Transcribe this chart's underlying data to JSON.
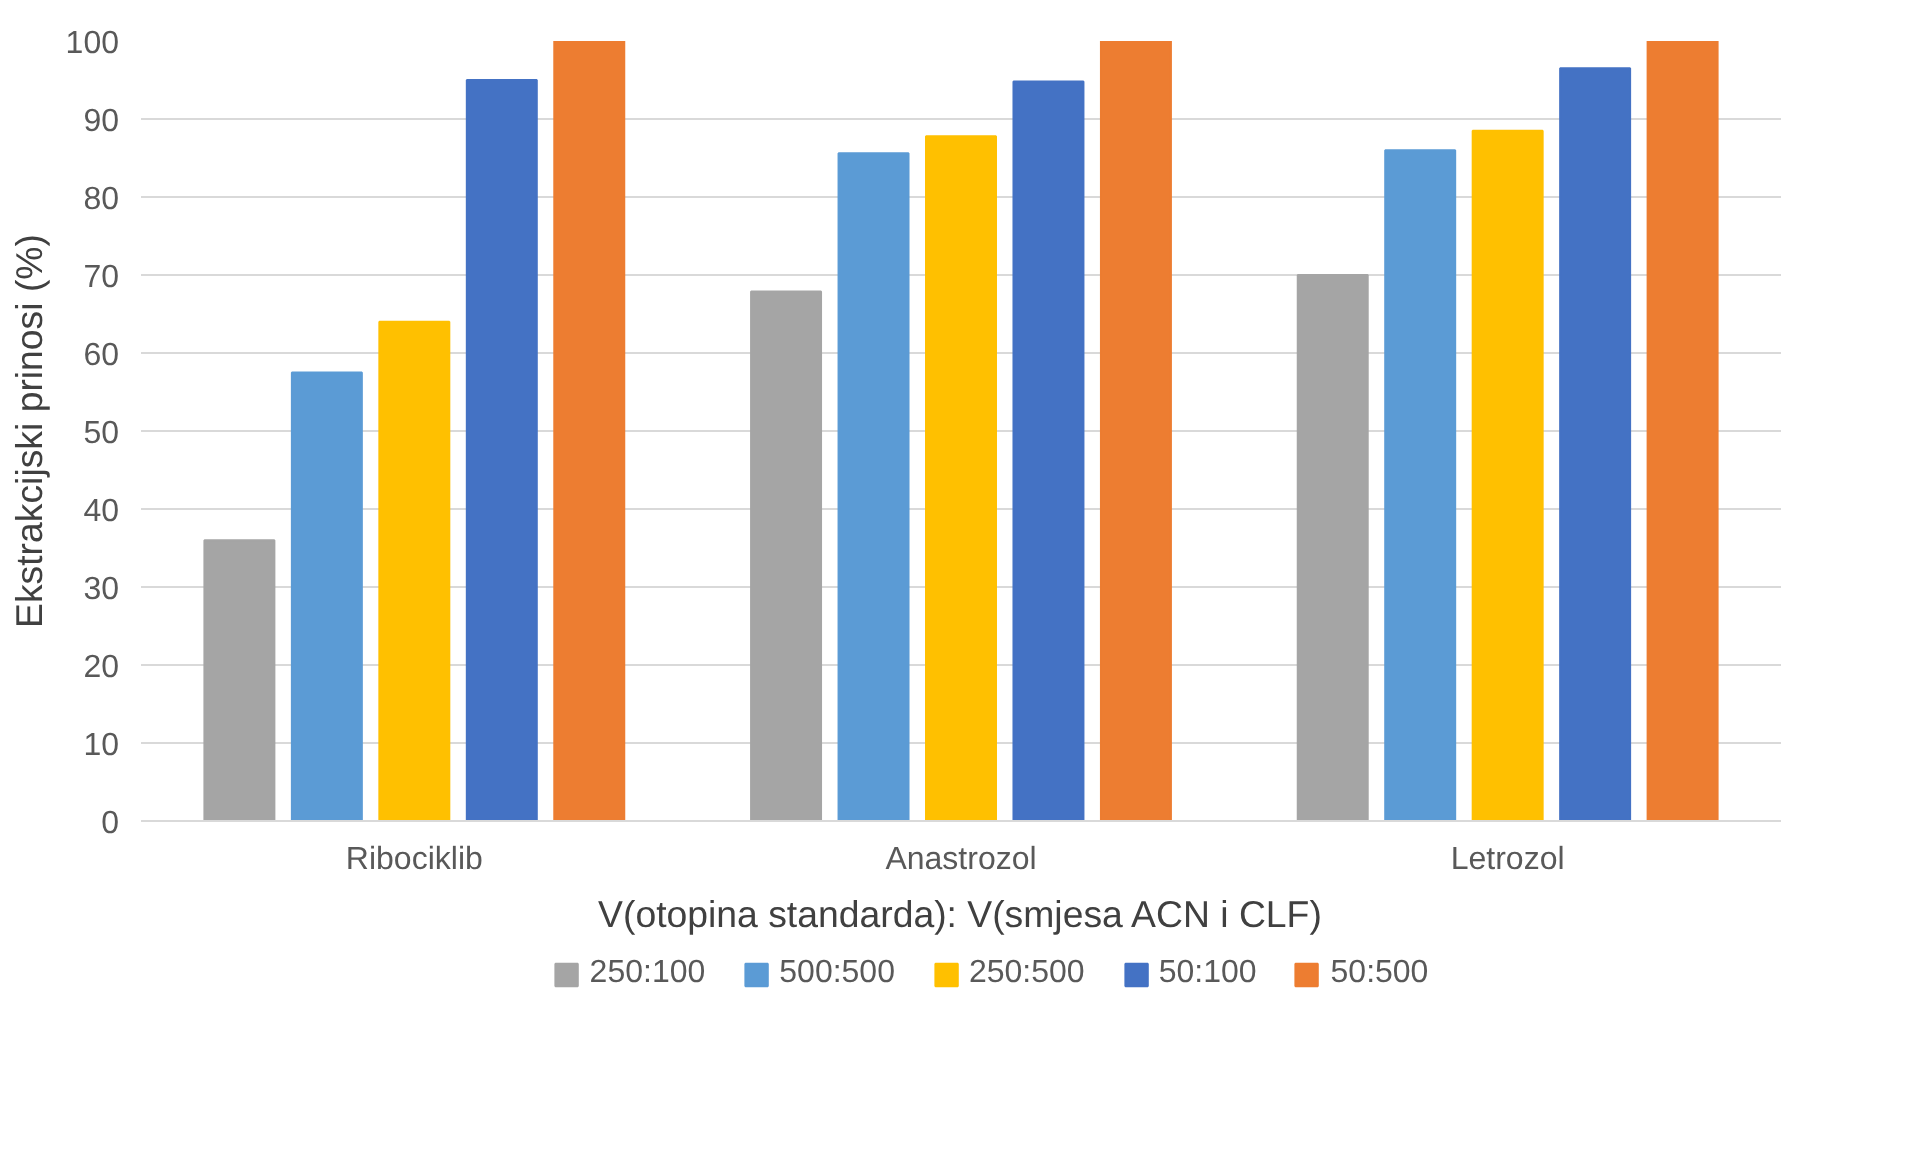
{
  "chart_data": {
    "type": "bar",
    "xlabel": "V(otopina standarda): V(smjesa ACN i CLF)",
    "ylabel": "Ekstrakcijski prinosi (%)",
    "categories": [
      "Ribociklib",
      "Anastrozol",
      "Letrozol"
    ],
    "series": [
      {
        "name": "250:100",
        "color": "#a5a5a5",
        "values": [
          36,
          67.9,
          70
        ]
      },
      {
        "name": "500:500",
        "color": "#5b9bd5",
        "values": [
          57.5,
          85.6,
          86
        ]
      },
      {
        "name": "250:500",
        "color": "#ffc000",
        "values": [
          64,
          87.8,
          88.5
        ]
      },
      {
        "name": "50:100",
        "color": "#4472c4",
        "values": [
          95,
          94.8,
          96.5
        ]
      },
      {
        "name": "50:500",
        "color": "#ed7d31",
        "values": [
          100,
          100,
          100
        ]
      }
    ],
    "ylim": [
      0,
      100
    ],
    "yticks": [
      0,
      10,
      20,
      30,
      40,
      50,
      60,
      70,
      80,
      90,
      100
    ],
    "grid": "y",
    "legend": "bottom"
  }
}
